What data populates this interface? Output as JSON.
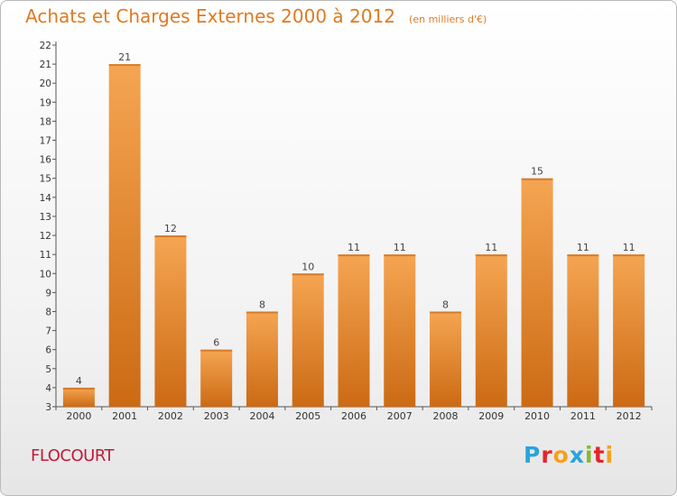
{
  "header": {
    "title": "Achats et Charges Externes 2000 à 2012",
    "unit": "(en milliers d'€)"
  },
  "footer": {
    "commune": "FLOCOURT",
    "logo_text": "Proxiti",
    "logo_colors": [
      "#2aa3dc",
      "#e2262a",
      "#f4a11e",
      "#2aa3dc",
      "#86b92e",
      "#e2262a",
      "#f4a11e"
    ]
  },
  "colors": {
    "bar_top": "#f5a552",
    "bar_bottom": "#cc6a14",
    "title": "#e07a1f",
    "commune": "#c21a3a"
  },
  "chart_data": {
    "type": "bar",
    "title": "Achats et Charges Externes 2000 à 2012",
    "subtitle": "(en milliers d'€)",
    "xlabel": "",
    "ylabel": "",
    "categories": [
      "2000",
      "2001",
      "2002",
      "2003",
      "2004",
      "2005",
      "2006",
      "2007",
      "2008",
      "2009",
      "2010",
      "2011",
      "2012"
    ],
    "values": [
      4,
      21,
      12,
      6,
      8,
      10,
      11,
      11,
      8,
      11,
      15,
      11,
      11
    ],
    "ylim": [
      3,
      22
    ],
    "yticks": [
      3,
      4,
      5,
      6,
      7,
      8,
      9,
      10,
      11,
      12,
      13,
      14,
      15,
      16,
      17,
      18,
      19,
      20,
      21,
      22
    ],
    "grid": false,
    "legend": "none"
  }
}
